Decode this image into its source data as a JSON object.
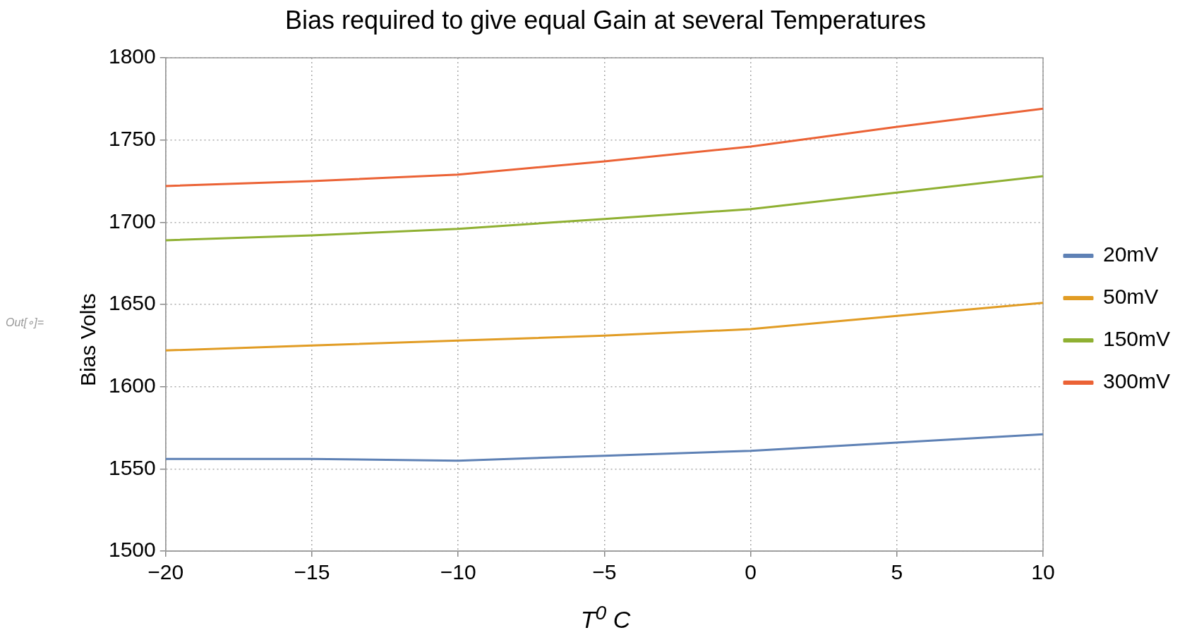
{
  "chart_data": {
    "type": "line",
    "title": "Bias required to give equal Gain at several Temperatures",
    "xlabel": "T$^{0}$ C",
    "ylabel": "Bias Volts",
    "annotations": [
      "Out[∘]="
    ],
    "x": [
      -20,
      -15,
      -10,
      -5,
      0,
      5,
      10
    ],
    "series": [
      {
        "name": "20mV",
        "color": "#5e81b5",
        "values": [
          1556,
          1556,
          1555,
          1558,
          1561,
          1566,
          1571
        ]
      },
      {
        "name": "50mV",
        "color": "#e19c24",
        "values": [
          1622,
          1625,
          1628,
          1631,
          1635,
          1643,
          1651
        ]
      },
      {
        "name": "150mV",
        "color": "#8fb032",
        "values": [
          1689,
          1692,
          1696,
          1702,
          1708,
          1718,
          1728
        ]
      },
      {
        "name": "300mV",
        "color": "#eb6235",
        "values": [
          1722,
          1725,
          1729,
          1737,
          1746,
          1758,
          1769
        ]
      }
    ],
    "xlim": [
      -20,
      10
    ],
    "xticks": [
      -20,
      -15,
      -10,
      -5,
      0,
      5,
      10
    ],
    "ylim": [
      1500,
      1800
    ],
    "yticks": [
      1500,
      1550,
      1600,
      1650,
      1700,
      1750,
      1800
    ],
    "grid": true,
    "legend": "right",
    "marker": "none",
    "line_style": "solid"
  }
}
